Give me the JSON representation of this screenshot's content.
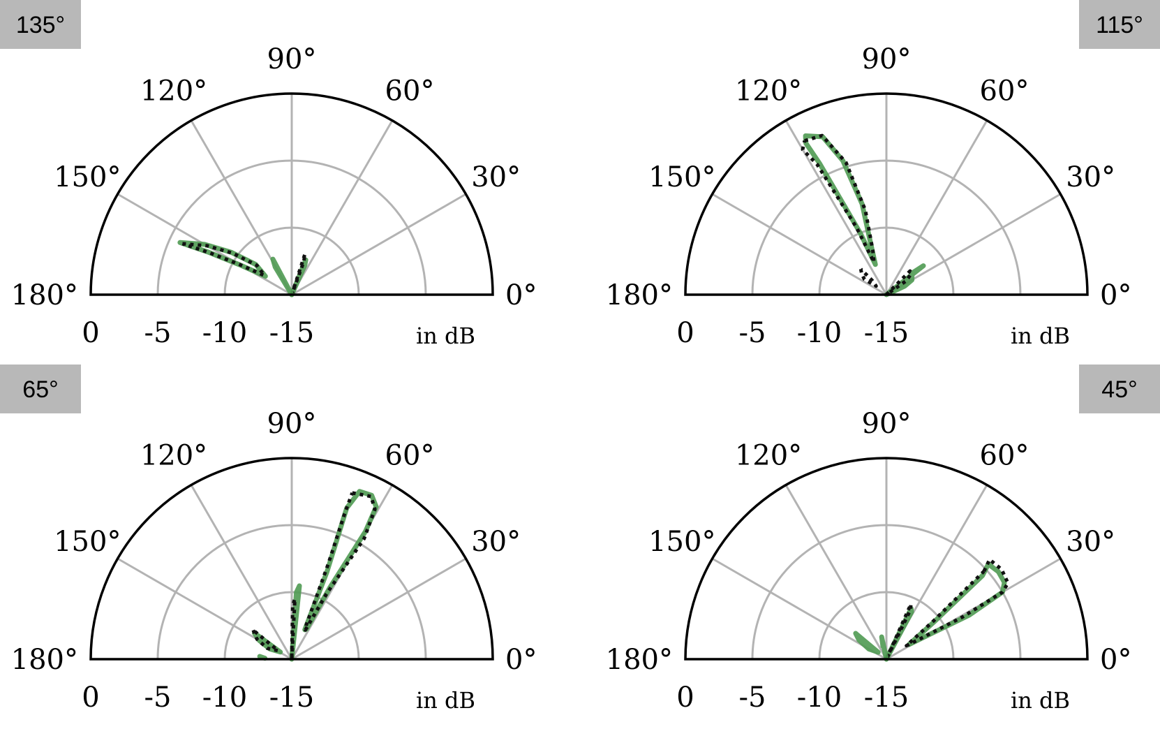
{
  "colors": {
    "measured": "#4f9a52",
    "simulated": "#111111",
    "grid": "#b3b3b3",
    "frame": "#000000",
    "badge": "#b8b8b8"
  },
  "chart_data": [
    {
      "type": "polar",
      "steering_label": "135°",
      "badge_position": "top-left",
      "theta_ticks": [
        "0°",
        "30°",
        "60°",
        "90°",
        "120°",
        "150°",
        "180°"
      ],
      "r_ticks": [
        "0",
        "-5",
        "-10",
        "-15"
      ],
      "r_unit": "in dB",
      "rlim": [
        -15,
        0
      ],
      "series": [
        {
          "style": "solid",
          "points": [
            [
              155,
              -5.8
            ],
            [
              150,
              -7.5
            ],
            [
              145,
              -9.5
            ],
            [
              140,
              -11.5
            ],
            [
              145,
              -12.6
            ],
            [
              150,
              -10.6
            ],
            [
              153,
              -8.0
            ],
            [
              155,
              -5.8
            ]
          ]
        },
        {
          "style": "dotted",
          "points": [
            [
              155,
              -6.0
            ],
            [
              150,
              -7.7
            ],
            [
              145,
              -9.6
            ],
            [
              140,
              -11.6
            ],
            [
              145,
              -12.5
            ],
            [
              150,
              -10.5
            ],
            [
              153,
              -8.1
            ],
            [
              155,
              -6.0
            ]
          ]
        },
        {
          "style": "solid",
          "points": [
            [
              75,
              -15
            ],
            [
              68,
              -12.2
            ],
            [
              66,
              -12.6
            ],
            [
              72,
              -15
            ]
          ]
        },
        {
          "style": "dotted",
          "points": [
            [
              78,
              -15
            ],
            [
              72,
              -11.8
            ],
            [
              70,
              -12.4
            ],
            [
              75,
              -15
            ]
          ]
        },
        {
          "style": "solid",
          "points": [
            [
              120,
              -15
            ],
            [
              118,
              -12.0
            ],
            [
              121,
              -12.6
            ],
            [
              125,
              -15
            ]
          ]
        }
      ]
    },
    {
      "type": "polar",
      "steering_label": "115°",
      "badge_position": "top-right",
      "theta_ticks": [
        "0°",
        "30°",
        "60°",
        "90°",
        "120°",
        "150°",
        "180°"
      ],
      "r_ticks": [
        "0",
        "-5",
        "-10",
        "-15"
      ],
      "r_unit": "in dB",
      "rlim": [
        -15,
        0
      ],
      "series": [
        {
          "style": "solid",
          "points": [
            [
              117,
              -1.7
            ],
            [
              112,
              -2.3
            ],
            [
              108,
              -4.5
            ],
            [
              105,
              -8.0
            ],
            [
              107,
              -11.0
            ],
            [
              110,
              -12.6
            ],
            [
              113,
              -10.0
            ],
            [
              117,
              -4.0
            ],
            [
              118,
              -2.2
            ],
            [
              117,
              -1.7
            ]
          ]
        },
        {
          "style": "dotted",
          "points": [
            [
              118,
              -2.0
            ],
            [
              112,
              -2.2
            ],
            [
              107,
              -4.7
            ],
            [
              104,
              -8.5
            ],
            [
              107,
              -11.5
            ],
            [
              111,
              -12.4
            ],
            [
              114,
              -9.5
            ],
            [
              118,
              -4.0
            ],
            [
              120,
              -2.5
            ],
            [
              118,
              -2.0
            ]
          ]
        },
        {
          "style": "solid",
          "points": [
            [
              35,
              -15
            ],
            [
              38,
              -11.5
            ],
            [
              40,
              -12.5
            ],
            [
              30,
              -12.8
            ],
            [
              25,
              -13.5
            ],
            [
              33,
              -15
            ]
          ]
        },
        {
          "style": "dotted",
          "points": [
            [
              45,
              -15
            ],
            [
              45,
              -12.5
            ],
            [
              40,
              -12.6
            ],
            [
              35,
              -13.2
            ],
            [
              42,
              -15
            ]
          ]
        },
        {
          "style": "dotted",
          "points": [
            [
              135,
              -12.3
            ],
            [
              140,
              -12.6
            ],
            [
              145,
              -13.0
            ],
            [
              140,
              -14.0
            ],
            [
              135,
              -13.5
            ],
            [
              135,
              -12.3
            ]
          ]
        }
      ]
    },
    {
      "type": "polar",
      "steering_label": "65°",
      "badge_position": "top-left",
      "theta_ticks": [
        "0°",
        "30°",
        "60°",
        "90°",
        "120°",
        "150°",
        "180°"
      ],
      "r_ticks": [
        "0",
        "-5",
        "-10",
        "-15"
      ],
      "r_unit": "in dB",
      "rlim": [
        -15,
        0
      ],
      "series": [
        {
          "style": "solid",
          "points": [
            [
              68,
              -1.5
            ],
            [
              64,
              -1.4
            ],
            [
              61,
              -2.0
            ],
            [
              60,
              -4.0
            ],
            [
              62,
              -9.0
            ],
            [
              64,
              -12.5
            ],
            [
              66,
              -12.6
            ],
            [
              68,
              -8.0
            ],
            [
              70,
              -3.0
            ],
            [
              68,
              -1.5
            ]
          ]
        },
        {
          "style": "dotted",
          "points": [
            [
              70,
              -1.8
            ],
            [
              64,
              -1.5
            ],
            [
              61,
              -2.2
            ],
            [
              59,
              -4.5
            ],
            [
              62,
              -9.5
            ],
            [
              65,
              -12.6
            ],
            [
              67,
              -12.2
            ],
            [
              69,
              -7.5
            ],
            [
              70,
              -3.5
            ],
            [
              70,
              -1.8
            ]
          ]
        },
        {
          "style": "solid",
          "points": [
            [
              87,
              -15
            ],
            [
              84,
              -9.5
            ],
            [
              86,
              -10.0
            ],
            [
              88,
              -15
            ]
          ]
        },
        {
          "style": "dotted",
          "points": [
            [
              89,
              -15
            ],
            [
              87,
              -10.5
            ],
            [
              89,
              -11.0
            ],
            [
              90,
              -15
            ]
          ]
        },
        {
          "style": "solid",
          "points": [
            [
              145,
              -11.6
            ],
            [
              150,
              -12.2
            ],
            [
              155,
              -13.2
            ],
            [
              148,
              -14.0
            ],
            [
              145,
              -11.6
            ]
          ]
        },
        {
          "style": "dotted",
          "points": [
            [
              143,
              -11.4
            ],
            [
              150,
              -12.0
            ],
            [
              156,
              -13.0
            ],
            [
              148,
              -13.8
            ],
            [
              143,
              -11.4
            ]
          ]
        },
        {
          "style": "solid",
          "points": [
            [
              175,
              -12.6
            ],
            [
              178,
              -13.0
            ]
          ]
        }
      ]
    },
    {
      "type": "polar",
      "steering_label": "45°",
      "badge_position": "top-right",
      "theta_ticks": [
        "0°",
        "30°",
        "60°",
        "90°",
        "120°",
        "150°",
        "180°"
      ],
      "r_ticks": [
        "0",
        "-5",
        "-10",
        "-15"
      ],
      "r_unit": "in dB",
      "rlim": [
        -15,
        0
      ],
      "series": [
        {
          "style": "solid",
          "points": [
            [
              41,
              -5.5
            ],
            [
              43,
              -4.6
            ],
            [
              38,
              -4.4
            ],
            [
              33,
              -4.5
            ],
            [
              30,
              -5.0
            ],
            [
              28,
              -8.0
            ],
            [
              30,
              -11.5
            ],
            [
              33,
              -13.0
            ],
            [
              38,
              -10.5
            ],
            [
              41,
              -5.5
            ]
          ]
        },
        {
          "style": "dotted",
          "points": [
            [
              42,
              -5.2
            ],
            [
              44,
              -4.3
            ],
            [
              38,
              -4.1
            ],
            [
              32,
              -4.3
            ],
            [
              30,
              -5.0
            ],
            [
              29,
              -8.5
            ],
            [
              31,
              -12.0
            ],
            [
              34,
              -13.2
            ],
            [
              39,
              -10.5
            ],
            [
              42,
              -5.2
            ]
          ]
        },
        {
          "style": "solid",
          "points": [
            [
              70,
              -15
            ],
            [
              64,
              -10.8
            ],
            [
              62,
              -11.0
            ],
            [
              66,
              -15
            ]
          ]
        },
        {
          "style": "dotted",
          "points": [
            [
              72,
              -15
            ],
            [
              66,
              -10.5
            ],
            [
              64,
              -10.9
            ],
            [
              68,
              -15
            ]
          ]
        },
        {
          "style": "solid",
          "points": [
            [
              140,
              -12.0
            ],
            [
              145,
              -12.5
            ],
            [
              150,
              -13.5
            ],
            [
              140,
              -14.2
            ],
            [
              140,
              -12.0
            ]
          ]
        },
        {
          "style": "solid",
          "points": [
            [
              100,
              -15
            ],
            [
              102,
              -13.3
            ],
            [
              105,
              -14.0
            ]
          ]
        }
      ]
    }
  ]
}
